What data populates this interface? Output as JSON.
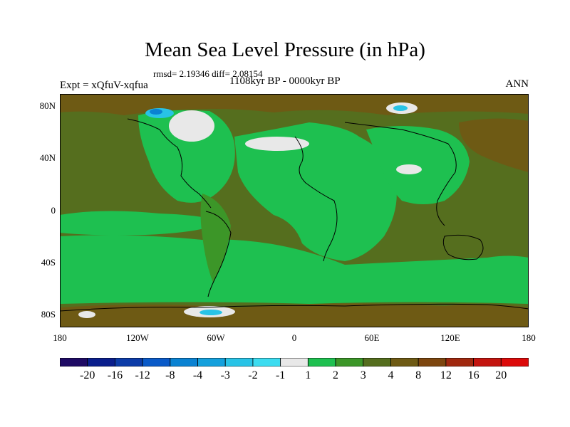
{
  "title": "Mean Sea Level Pressure (in hPa)",
  "stats": "rmsd= 2.19346 diff= 2.08154",
  "period": "1108kyr BP - 0000kyr BP",
  "experiment": "Expt = xQfuV-xqfua",
  "season": "ANN",
  "axes": {
    "y_ticks": [
      "80N",
      "40N",
      "0",
      "40S",
      "80S"
    ],
    "x_ticks": [
      "180",
      "120W",
      "60W",
      "0",
      "60E",
      "120E",
      "180"
    ]
  },
  "colorbar": {
    "labels": [
      "-20",
      "-16",
      "-12",
      "-8",
      "-4",
      "-3",
      "-2",
      "-1",
      "1",
      "2",
      "3",
      "4",
      "8",
      "12",
      "16",
      "20"
    ],
    "colors": [
      "#1e0a64",
      "#0a1e8c",
      "#0c3ca8",
      "#0a5ac8",
      "#0a82d2",
      "#14a0dc",
      "#28c3e6",
      "#3cdcf0",
      "#e8e8e8",
      "#1ec050",
      "#3c9628",
      "#556e1e",
      "#6e5a14",
      "#7d460f",
      "#a0280f",
      "#c3140f",
      "#dc0a0a"
    ]
  },
  "map_colors": {
    "ocean_green": "#1ec050",
    "mid_green": "#3c9628",
    "olive": "#556e1e",
    "brown": "#6e5a14",
    "white": "#e8e8e8",
    "cyan": "#28c3e6",
    "blue": "#0a82d2"
  }
}
